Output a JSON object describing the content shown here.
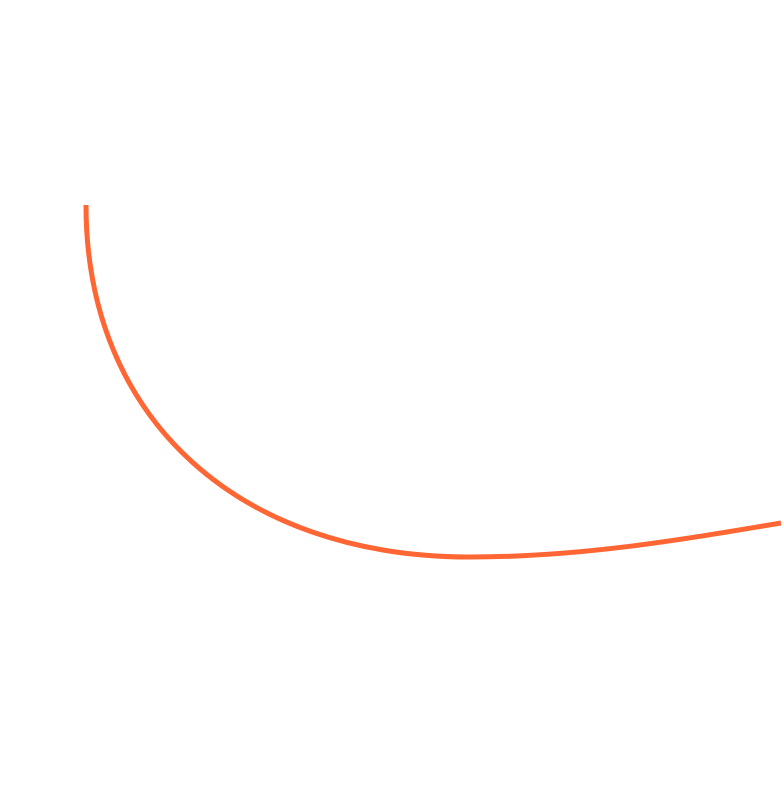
{
  "colors": {
    "background": "#ffffff",
    "arc_stroke": "#ff6633"
  }
}
